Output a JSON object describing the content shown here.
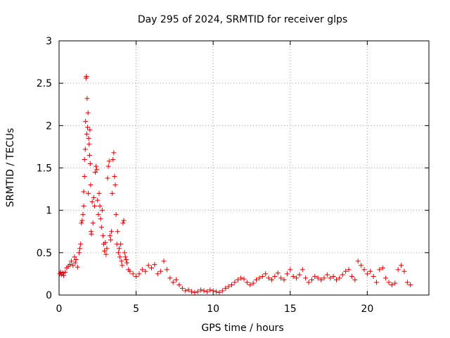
{
  "chart_data": {
    "type": "scatter",
    "title": "Day 295 of 2024, SRMTID for receiver glps",
    "xlabel": "GPS time / hours",
    "ylabel": "SRMTID / TECUs",
    "xlim": [
      0,
      24
    ],
    "ylim": [
      0,
      3
    ],
    "xticks": [
      0,
      5,
      10,
      15,
      20
    ],
    "yticks": [
      0,
      0.5,
      1,
      1.5,
      2,
      2.5,
      3
    ],
    "ytick_labels": [
      "0",
      "0.5",
      "1",
      "1.5",
      "2",
      "2.5",
      "3"
    ],
    "xtick_labels": [
      "0",
      "5",
      "10",
      "15",
      "20"
    ],
    "grid": true,
    "marker": "+",
    "series": [
      {
        "name": "SRMTID",
        "color": "#dd0000",
        "points": [
          [
            0.05,
            0.25
          ],
          [
            0.1,
            0.27
          ],
          [
            0.15,
            0.24
          ],
          [
            0.25,
            0.26
          ],
          [
            0.3,
            0.23
          ],
          [
            0.4,
            0.27
          ],
          [
            0.5,
            0.32
          ],
          [
            0.6,
            0.34
          ],
          [
            0.7,
            0.36
          ],
          [
            0.8,
            0.4
          ],
          [
            0.9,
            0.35
          ],
          [
            1.0,
            0.45
          ],
          [
            1.05,
            0.38
          ],
          [
            1.1,
            0.42
          ],
          [
            1.2,
            0.33
          ],
          [
            1.3,
            0.5
          ],
          [
            1.35,
            0.55
          ],
          [
            1.4,
            0.6
          ],
          [
            1.45,
            0.85
          ],
          [
            1.5,
            0.88
          ],
          [
            1.55,
            0.95
          ],
          [
            1.6,
            1.05
          ],
          [
            1.6,
            1.22
          ],
          [
            1.65,
            1.4
          ],
          [
            1.65,
            1.6
          ],
          [
            1.7,
            1.72
          ],
          [
            1.72,
            2.05
          ],
          [
            1.75,
            2.56
          ],
          [
            1.78,
            2.58
          ],
          [
            1.8,
            1.9
          ],
          [
            1.82,
            2.32
          ],
          [
            1.85,
            1.98
          ],
          [
            1.88,
            2.15
          ],
          [
            1.9,
            1.2
          ],
          [
            1.92,
            1.85
          ],
          [
            1.95,
            1.78
          ],
          [
            1.98,
            1.65
          ],
          [
            2.0,
            1.95
          ],
          [
            2.02,
            1.55
          ],
          [
            2.05,
            1.3
          ],
          [
            2.08,
            0.75
          ],
          [
            2.1,
            0.72
          ],
          [
            2.15,
            1.1
          ],
          [
            2.2,
            0.85
          ],
          [
            2.25,
            1.15
          ],
          [
            2.3,
            1.05
          ],
          [
            2.35,
            1.45
          ],
          [
            2.4,
            1.52
          ],
          [
            2.45,
            1.48
          ],
          [
            2.5,
            1.12
          ],
          [
            2.55,
            0.95
          ],
          [
            2.6,
            1.2
          ],
          [
            2.65,
            1.05
          ],
          [
            2.7,
            0.9
          ],
          [
            2.75,
            0.8
          ],
          [
            2.8,
            1.0
          ],
          [
            2.85,
            0.7
          ],
          [
            2.9,
            0.6
          ],
          [
            2.95,
            0.52
          ],
          [
            3.0,
            0.62
          ],
          [
            3.05,
            0.48
          ],
          [
            3.1,
            0.55
          ],
          [
            3.15,
            1.38
          ],
          [
            3.2,
            1.52
          ],
          [
            3.25,
            1.58
          ],
          [
            3.3,
            0.7
          ],
          [
            3.35,
            0.65
          ],
          [
            3.4,
            0.75
          ],
          [
            3.45,
            1.2
          ],
          [
            3.5,
            1.6
          ],
          [
            3.55,
            1.68
          ],
          [
            3.6,
            1.4
          ],
          [
            3.65,
            1.3
          ],
          [
            3.7,
            0.95
          ],
          [
            3.75,
            0.6
          ],
          [
            3.8,
            0.75
          ],
          [
            3.85,
            0.5
          ],
          [
            3.9,
            0.55
          ],
          [
            3.95,
            0.45
          ],
          [
            4.0,
            0.6
          ],
          [
            4.05,
            0.4
          ],
          [
            4.1,
            0.35
          ],
          [
            4.15,
            0.85
          ],
          [
            4.2,
            0.88
          ],
          [
            4.25,
            0.5
          ],
          [
            4.3,
            0.45
          ],
          [
            4.35,
            0.42
          ],
          [
            4.4,
            0.38
          ],
          [
            4.5,
            0.3
          ],
          [
            4.6,
            0.28
          ],
          [
            4.8,
            0.25
          ],
          [
            5.0,
            0.22
          ],
          [
            5.2,
            0.25
          ],
          [
            5.4,
            0.3
          ],
          [
            5.6,
            0.28
          ],
          [
            5.8,
            0.35
          ],
          [
            6.0,
            0.32
          ],
          [
            6.2,
            0.36
          ],
          [
            6.4,
            0.25
          ],
          [
            6.6,
            0.28
          ],
          [
            6.8,
            0.4
          ],
          [
            7.0,
            0.3
          ],
          [
            7.2,
            0.2
          ],
          [
            7.4,
            0.15
          ],
          [
            7.6,
            0.18
          ],
          [
            7.8,
            0.12
          ],
          [
            8.0,
            0.08
          ],
          [
            8.2,
            0.05
          ],
          [
            8.4,
            0.06
          ],
          [
            8.6,
            0.04
          ],
          [
            8.8,
            0.03
          ],
          [
            9.0,
            0.04
          ],
          [
            9.2,
            0.06
          ],
          [
            9.4,
            0.05
          ],
          [
            9.6,
            0.04
          ],
          [
            9.8,
            0.06
          ],
          [
            10.0,
            0.05
          ],
          [
            10.2,
            0.04
          ],
          [
            10.4,
            0.03
          ],
          [
            10.6,
            0.05
          ],
          [
            10.8,
            0.08
          ],
          [
            11.0,
            0.1
          ],
          [
            11.2,
            0.12
          ],
          [
            11.4,
            0.15
          ],
          [
            11.6,
            0.18
          ],
          [
            11.8,
            0.2
          ],
          [
            12.0,
            0.19
          ],
          [
            12.2,
            0.15
          ],
          [
            12.4,
            0.12
          ],
          [
            12.6,
            0.14
          ],
          [
            12.8,
            0.18
          ],
          [
            13.0,
            0.2
          ],
          [
            13.2,
            0.22
          ],
          [
            13.4,
            0.25
          ],
          [
            13.6,
            0.2
          ],
          [
            13.8,
            0.18
          ],
          [
            14.0,
            0.22
          ],
          [
            14.2,
            0.26
          ],
          [
            14.4,
            0.2
          ],
          [
            14.6,
            0.18
          ],
          [
            14.8,
            0.25
          ],
          [
            15.0,
            0.3
          ],
          [
            15.2,
            0.22
          ],
          [
            15.4,
            0.2
          ],
          [
            15.6,
            0.24
          ],
          [
            15.8,
            0.3
          ],
          [
            16.0,
            0.2
          ],
          [
            16.2,
            0.15
          ],
          [
            16.4,
            0.18
          ],
          [
            16.6,
            0.22
          ],
          [
            16.8,
            0.2
          ],
          [
            17.0,
            0.18
          ],
          [
            17.2,
            0.2
          ],
          [
            17.4,
            0.24
          ],
          [
            17.6,
            0.2
          ],
          [
            17.8,
            0.22
          ],
          [
            18.0,
            0.18
          ],
          [
            18.2,
            0.2
          ],
          [
            18.4,
            0.24
          ],
          [
            18.6,
            0.28
          ],
          [
            18.8,
            0.3
          ],
          [
            19.0,
            0.22
          ],
          [
            19.2,
            0.18
          ],
          [
            19.4,
            0.4
          ],
          [
            19.6,
            0.35
          ],
          [
            19.8,
            0.3
          ],
          [
            20.0,
            0.25
          ],
          [
            20.2,
            0.28
          ],
          [
            20.4,
            0.22
          ],
          [
            20.6,
            0.15
          ],
          [
            20.8,
            0.3
          ],
          [
            21.0,
            0.32
          ],
          [
            21.2,
            0.2
          ],
          [
            21.4,
            0.15
          ],
          [
            21.6,
            0.12
          ],
          [
            21.8,
            0.14
          ],
          [
            22.0,
            0.3
          ],
          [
            22.2,
            0.35
          ],
          [
            22.4,
            0.28
          ],
          [
            22.6,
            0.15
          ],
          [
            22.8,
            0.12
          ]
        ]
      }
    ]
  }
}
